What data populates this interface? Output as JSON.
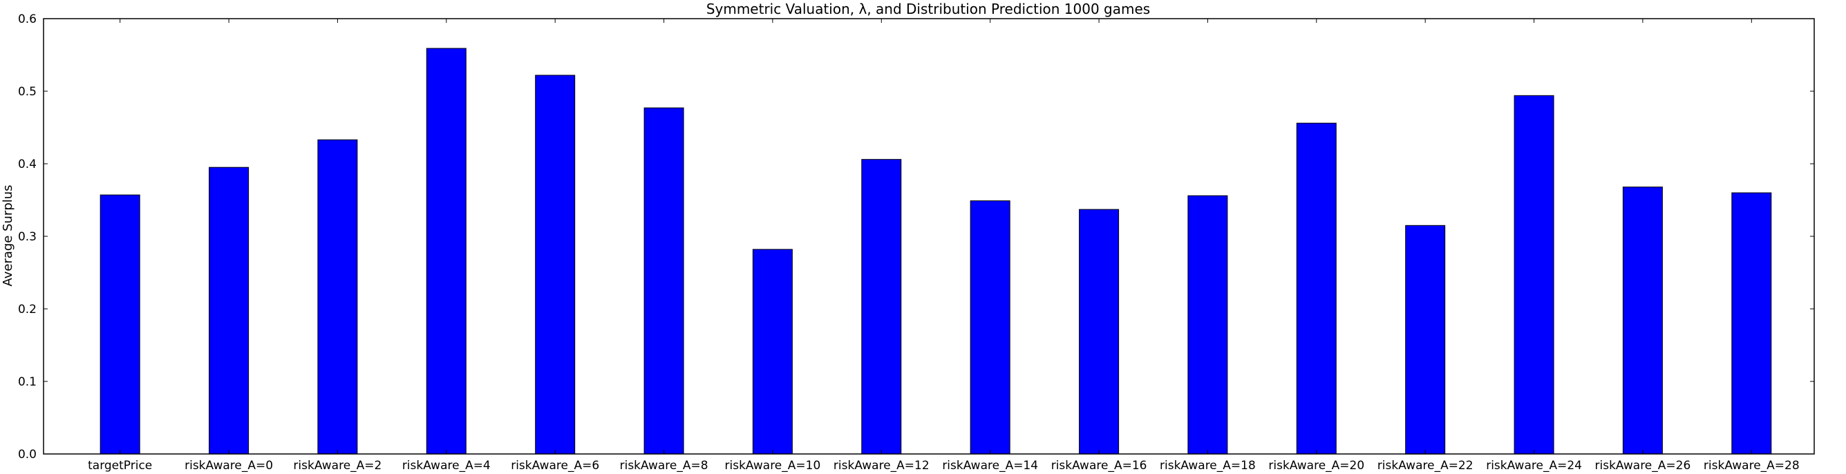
{
  "chart_data": {
    "type": "bar",
    "title": "Symmetric Valuation, λ, and Distribution Prediction 1000 games",
    "xlabel": "",
    "ylabel": "Average Surplus",
    "ylim": [
      0,
      0.6
    ],
    "yticks": [
      "0.0",
      "0.1",
      "0.2",
      "0.3",
      "0.4",
      "0.5",
      "0.6"
    ],
    "grid": false,
    "bar_color": "#0000ff",
    "categories": [
      "targetPrice",
      "riskAware_A=0",
      "riskAware_A=2",
      "riskAware_A=4",
      "riskAware_A=6",
      "riskAware_A=8",
      "riskAware_A=10",
      "riskAware_A=12",
      "riskAware_A=14",
      "riskAware_A=16",
      "riskAware_A=18",
      "riskAware_A=20",
      "riskAware_A=22",
      "riskAware_A=24",
      "riskAware_A=26",
      "riskAware_A=28"
    ],
    "values": [
      0.357,
      0.395,
      0.433,
      0.559,
      0.522,
      0.477,
      0.282,
      0.406,
      0.349,
      0.337,
      0.356,
      0.456,
      0.315,
      0.494,
      0.368,
      0.36
    ]
  }
}
